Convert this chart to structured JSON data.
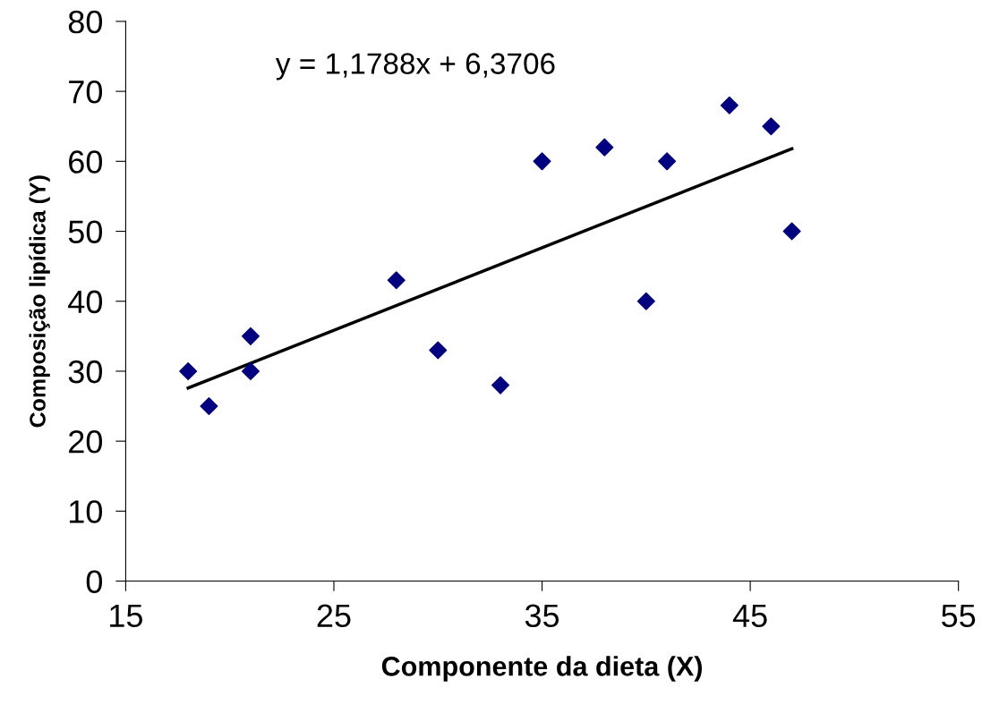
{
  "chart_data": {
    "type": "scatter",
    "xlabel": "Componente da dieta (X)",
    "ylabel": "Composição lipídica (Y)",
    "xlim": [
      15,
      55
    ],
    "xticks": [
      15,
      25,
      35,
      45,
      55
    ],
    "ylim": [
      0,
      80
    ],
    "yticks": [
      0,
      10,
      20,
      30,
      40,
      50,
      60,
      70,
      80
    ],
    "grid": false,
    "legend": false,
    "annotations": [
      "y = 1,1788x + 6,3706"
    ],
    "series": [
      {
        "marker": "diamond",
        "color": "#000080",
        "x": [
          18,
          19,
          21,
          21,
          28,
          30,
          33,
          35,
          38,
          40,
          41,
          44,
          46,
          47
        ],
        "values": [
          30,
          25,
          35,
          30,
          43,
          33,
          28,
          60,
          62,
          40,
          60,
          68,
          65,
          50
        ]
      },
      {
        "type": "line",
        "color": "#000000",
        "x": [
          18,
          47
        ],
        "values": [
          27.6,
          61.8
        ]
      }
    ]
  }
}
